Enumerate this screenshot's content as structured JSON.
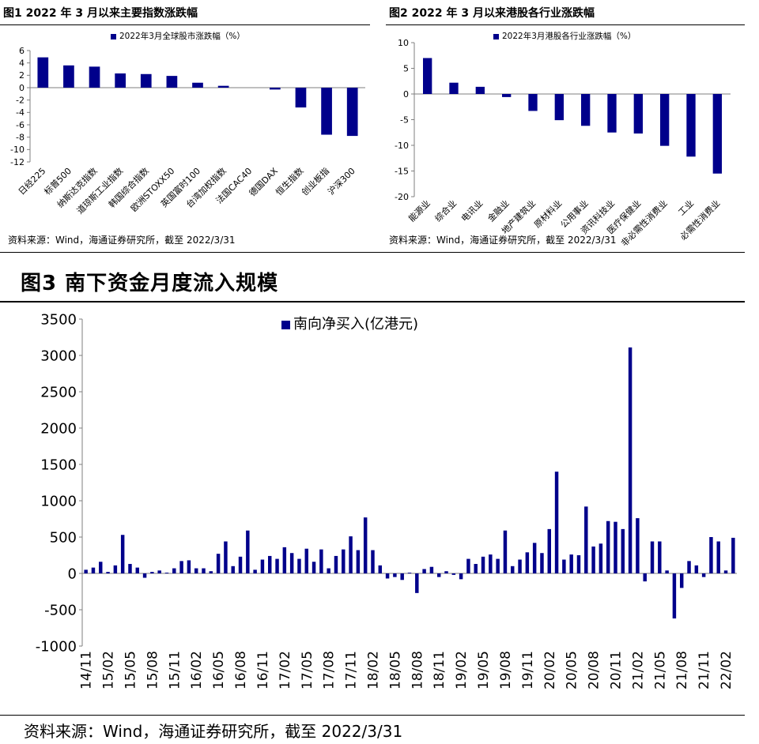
{
  "colors": {
    "bar": "#00008B",
    "axis": "#7f7f7f",
    "text": "#000000"
  },
  "fig1": {
    "title": "图1  2022 年 3 月以来主要指数涨跌幅",
    "source": "资料来源：Wind，海通证券研究所，截至 2022/3/31"
  },
  "fig2": {
    "title": "图2  2022 年 3 月以来港股各行业涨跌幅",
    "source": "资料来源：Wind，海通证券研究所，截至 2022/3/31"
  },
  "fig3": {
    "title": "图3   南下资金月度流入规模",
    "source": "资料来源：Wind，海通证券研究所，截至 2022/3/31"
  },
  "chart_data": [
    {
      "type": "bar",
      "legend": "2022年3月全球股市涨跌幅（%）",
      "legend_position": "top",
      "categories": [
        "日经225",
        "标普500",
        "纳斯达克指数",
        "道琼斯工业指数",
        "韩国综合指数",
        "欧洲STOXX50",
        "英国富时100",
        "台湾加权指数",
        "法国CAC40",
        "德国DAX",
        "恒生指数",
        "创业板指",
        "沪深300"
      ],
      "values": [
        4.9,
        3.6,
        3.4,
        2.3,
        2.2,
        1.9,
        0.8,
        0.3,
        0.0,
        -0.3,
        -3.2,
        -7.6,
        -7.8
      ],
      "ylim": [
        -12,
        6
      ],
      "yticks": [
        6,
        4,
        2,
        0,
        -2,
        -4,
        -6,
        -8,
        -10,
        -12
      ],
      "grid": false
    },
    {
      "type": "bar",
      "legend": "2022年3月港股各行业涨跌幅（%）",
      "legend_position": "top",
      "categories": [
        "能源业",
        "综合业",
        "电讯业",
        "金融业",
        "地产建筑业",
        "原材料业",
        "公用事业",
        "资讯科技业",
        "医疗保健业",
        "非必需性消费业",
        "工业",
        "必需性消费业"
      ],
      "values": [
        7.0,
        2.2,
        1.4,
        -0.6,
        -3.3,
        -5.1,
        -6.2,
        -7.5,
        -7.7,
        -10.1,
        -12.2,
        -15.5
      ],
      "ylim": [
        -20,
        10
      ],
      "yticks": [
        10,
        5,
        0,
        -5,
        -10,
        -15,
        -20
      ],
      "grid": false
    },
    {
      "type": "bar",
      "legend": "南向净买入(亿港元)",
      "legend_position": "top",
      "ylim": [
        -1000,
        3500
      ],
      "yticks": [
        3500,
        3000,
        2500,
        2000,
        1500,
        1000,
        500,
        0,
        -500,
        -1000
      ],
      "xtick_labels": [
        "14/11",
        "15/02",
        "15/05",
        "15/08",
        "15/11",
        "16/02",
        "16/05",
        "16/08",
        "16/11",
        "17/02",
        "17/05",
        "17/08",
        "17/11",
        "18/02",
        "18/05",
        "18/08",
        "18/11",
        "19/02",
        "19/05",
        "19/08",
        "19/11",
        "20/02",
        "20/05",
        "20/08",
        "20/11",
        "21/02",
        "21/05",
        "21/08",
        "21/11",
        "22/02"
      ],
      "start_month": "14/11",
      "values": [
        50,
        80,
        160,
        20,
        110,
        530,
        130,
        80,
        -60,
        20,
        40,
        10,
        70,
        170,
        180,
        70,
        70,
        30,
        270,
        440,
        100,
        230,
        590,
        50,
        190,
        240,
        200,
        360,
        280,
        200,
        340,
        160,
        330,
        70,
        240,
        330,
        510,
        320,
        770,
        320,
        110,
        -70,
        -50,
        -90,
        10,
        -270,
        60,
        90,
        -50,
        30,
        -20,
        -80,
        200,
        130,
        230,
        260,
        200,
        590,
        100,
        190,
        290,
        420,
        280,
        610,
        1400,
        190,
        260,
        250,
        920,
        370,
        410,
        720,
        710,
        610,
        3110,
        760,
        -110,
        440,
        440,
        40,
        -620,
        -200,
        170,
        110,
        -50,
        500,
        440,
        40,
        490
      ],
      "grid": false
    }
  ]
}
